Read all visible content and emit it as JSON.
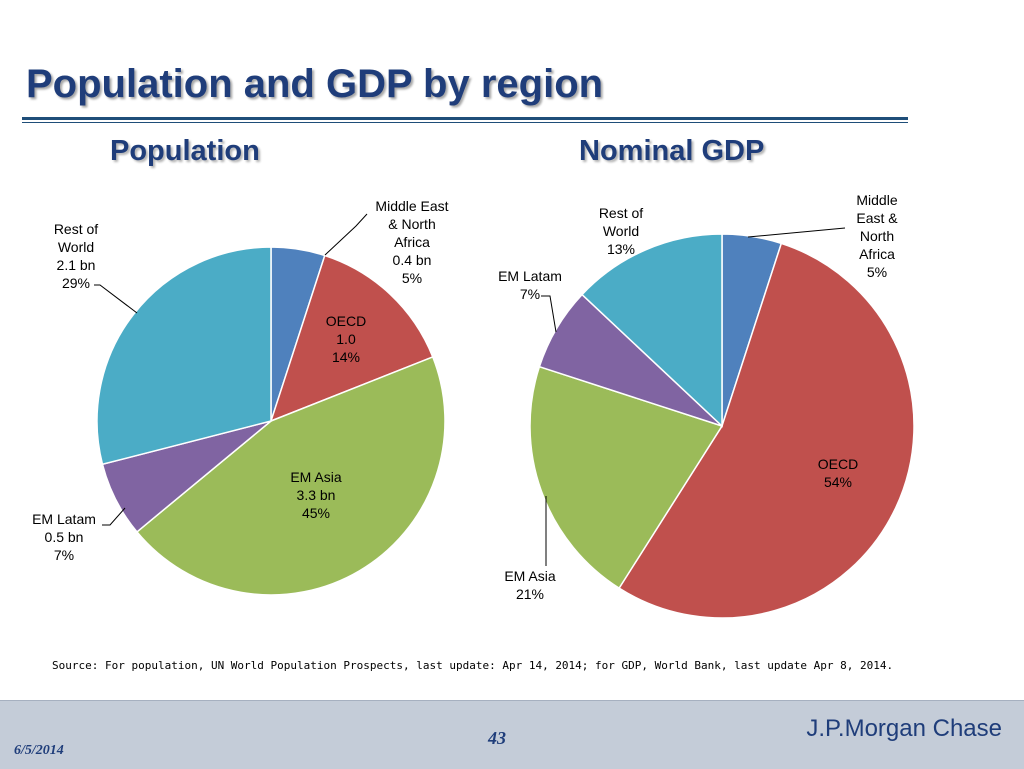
{
  "slide": {
    "title": "Population and GDP by region",
    "source": "Source: For population, UN World Population Prospects, last update: Apr 14, 2014; for GDP, World Bank, last update Apr 8, 2014.",
    "footer": {
      "date": "6/5/2014",
      "page": "43",
      "brand": "J.P.Morgan Chase"
    }
  },
  "colors": {
    "middle_east": "#4f81bd",
    "oecd": "#c0504d",
    "em_asia": "#9bbb59",
    "em_latam": "#8064a2",
    "rest_of_world": "#4bacc6"
  },
  "chart_data": [
    {
      "type": "pie",
      "title": "Population",
      "slices": [
        {
          "label": [
            "Middle East",
            "& North",
            "Africa",
            "0.4 bn",
            "5%"
          ],
          "value": 5,
          "color": "#4f81bd"
        },
        {
          "label": [
            "OECD",
            "1.0",
            "14%"
          ],
          "value": 14,
          "color": "#c0504d"
        },
        {
          "label": [
            "EM Asia",
            "3.3 bn",
            "45%"
          ],
          "value": 45,
          "color": "#9bbb59"
        },
        {
          "label": [
            "EM Latam",
            "0.5 bn",
            "7%"
          ],
          "value": 7,
          "color": "#8064a2"
        },
        {
          "label": [
            "Rest of",
            "World",
            "2.1 bn",
            "29%"
          ],
          "value": 29,
          "color": "#4bacc6"
        }
      ]
    },
    {
      "type": "pie",
      "title": "Nominal GDP",
      "slices": [
        {
          "label": [
            "Middle",
            "East &",
            "North",
            "Africa",
            "5%"
          ],
          "value": 5,
          "color": "#4f81bd"
        },
        {
          "label": [
            "OECD",
            "54%"
          ],
          "value": 54,
          "color": "#c0504d"
        },
        {
          "label": [
            "EM Asia",
            "21%"
          ],
          "value": 21,
          "color": "#9bbb59"
        },
        {
          "label": [
            "EM Latam",
            "7%"
          ],
          "value": 7,
          "color": "#8064a2"
        },
        {
          "label": [
            "Rest of",
            "World",
            "13%"
          ],
          "value": 13,
          "color": "#4bacc6"
        }
      ]
    }
  ]
}
